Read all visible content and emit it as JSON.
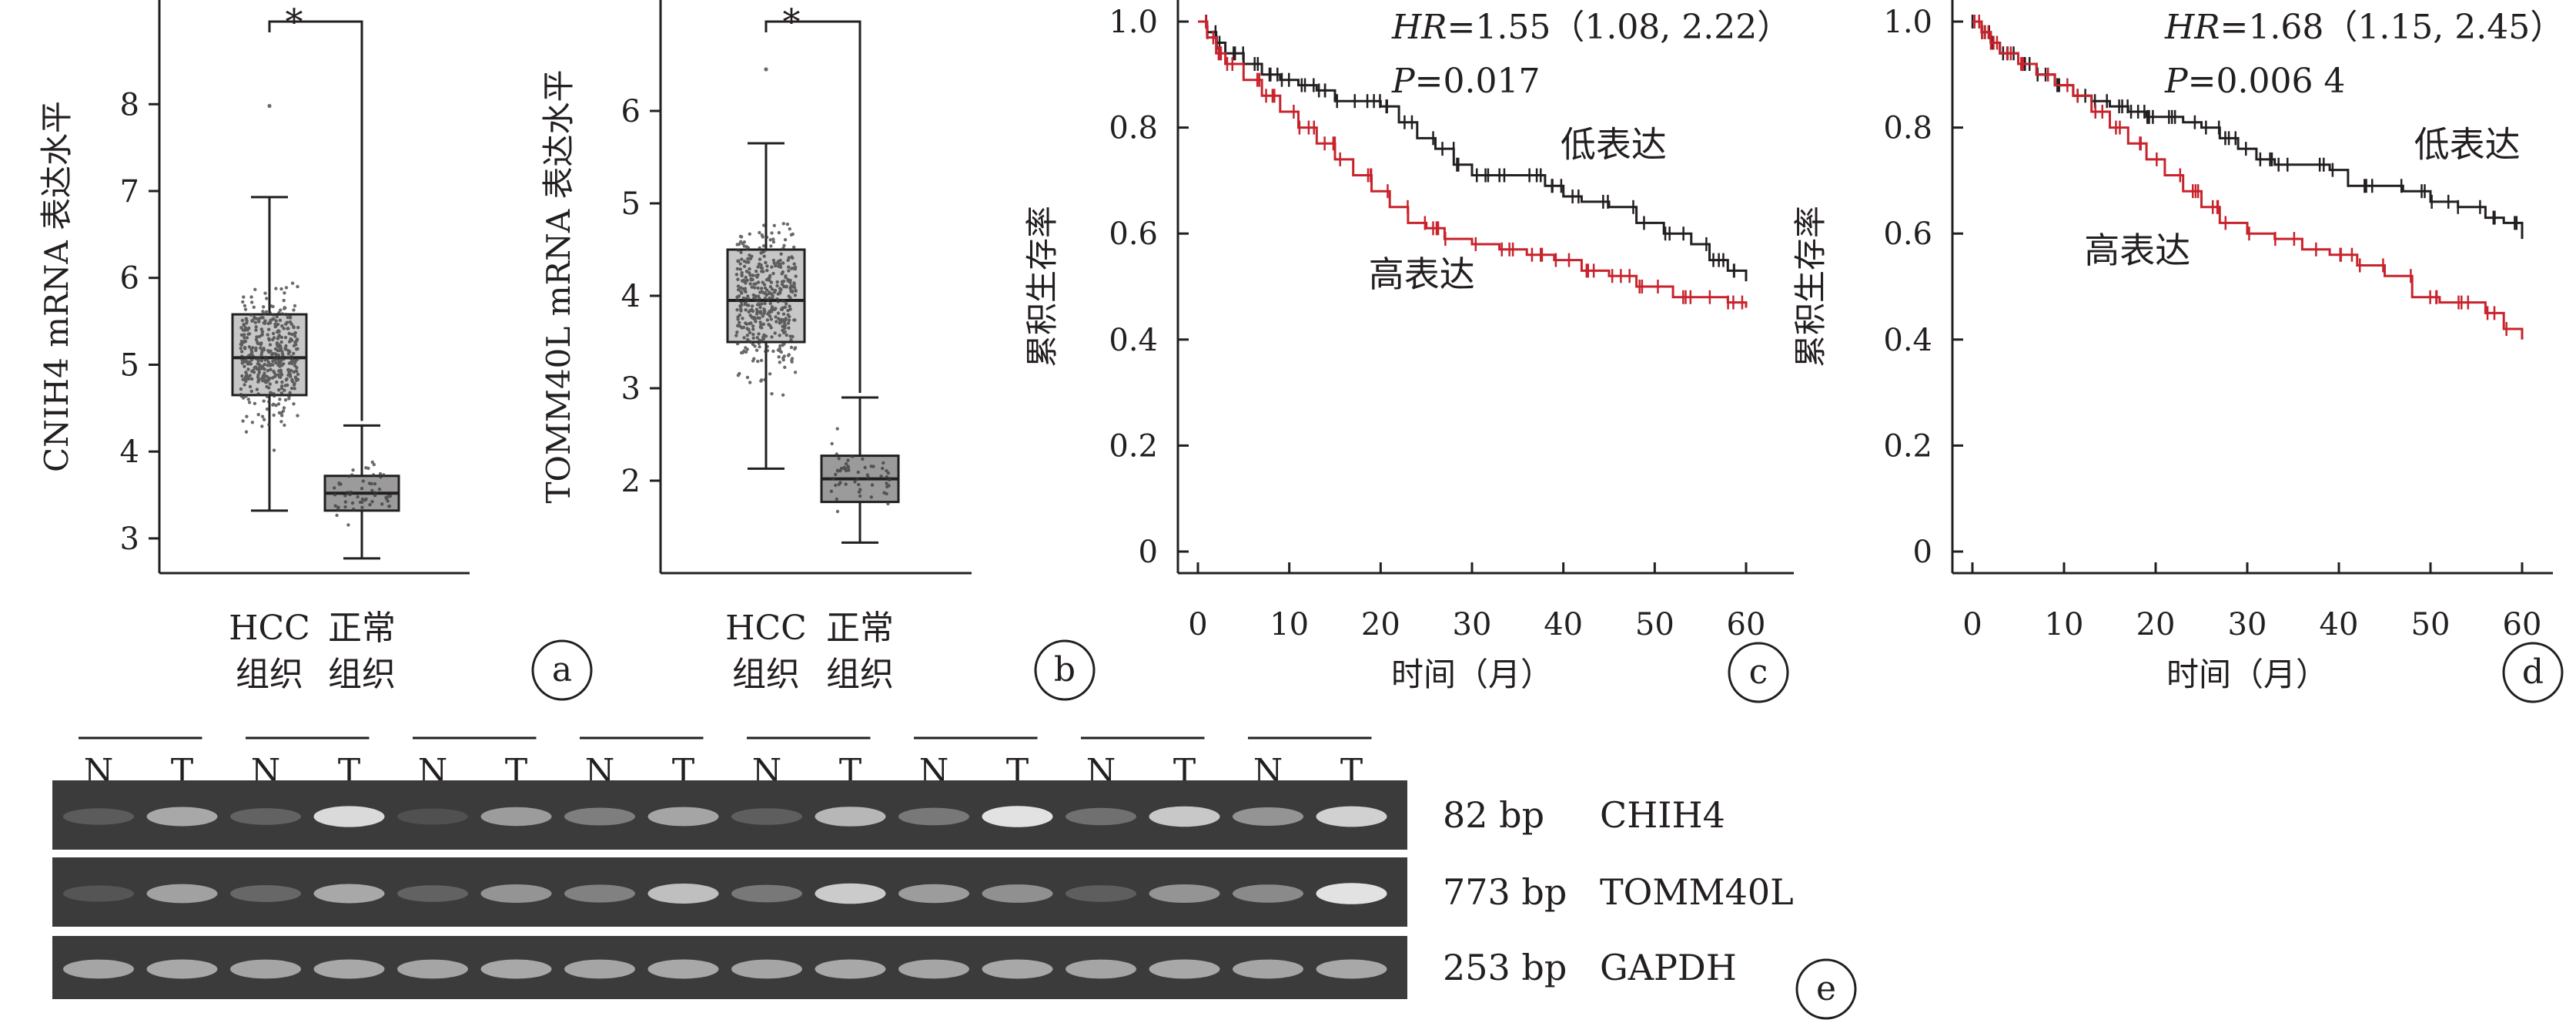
{
  "chart_data": [
    {
      "panel": "a",
      "type": "box",
      "ylabel": "CNIH4 mRNA 表达水平",
      "ylim": [
        2.6,
        9.2
      ],
      "yticks": [
        3,
        4,
        5,
        6,
        7,
        8
      ],
      "categories": [
        [
          "HCC",
          "组织"
        ],
        [
          "正常",
          "组织"
        ]
      ],
      "boxes": [
        {
          "whisker_low": 3.32,
          "q1": 4.65,
          "median": 5.08,
          "q3": 5.58,
          "whisker_high": 6.93,
          "outlier_max": 7.98,
          "color": "#c7c7c7"
        },
        {
          "whisker_low": 2.77,
          "q1": 3.32,
          "median": 3.52,
          "q3": 3.72,
          "whisker_high": 4.3,
          "color": "#9b9b9b"
        }
      ],
      "significance": "*"
    },
    {
      "panel": "b",
      "type": "box",
      "ylabel": "TOMM40L mRNA 表达水平",
      "ylim": [
        1.0,
        7.2
      ],
      "yticks": [
        2,
        3,
        4,
        5,
        6
      ],
      "categories": [
        [
          "HCC",
          "组织"
        ],
        [
          "正常",
          "组织"
        ]
      ],
      "boxes": [
        {
          "whisker_low": 2.13,
          "q1": 3.5,
          "median": 3.95,
          "q3": 4.5,
          "whisker_high": 5.65,
          "outlier_max": 6.45,
          "color": "#c7c7c7"
        },
        {
          "whisker_low": 1.33,
          "q1": 1.77,
          "median": 2.02,
          "q3": 2.27,
          "whisker_high": 2.9,
          "color": "#9b9b9b"
        }
      ],
      "significance": "*"
    },
    {
      "panel": "c",
      "type": "line",
      "xlabel": "时间（月）",
      "ylabel": "累积生存率",
      "xlim": [
        0,
        60
      ],
      "ylim": [
        0,
        1
      ],
      "xticks": [
        0,
        10,
        20,
        30,
        40,
        50,
        60
      ],
      "yticks": [
        0,
        0.2,
        0.4,
        0.6,
        0.8,
        1.0
      ],
      "ytick_labels": [
        "0",
        "0.2",
        "0.4",
        "0.6",
        "0.8",
        "1.0"
      ],
      "stats": {
        "hr": "HR",
        "hr_value": "=1.55（1.08, 2.22）",
        "p": "P",
        "p_value": "=0.017"
      },
      "series": [
        {
          "name": "低表达",
          "color": "#231f20",
          "x": [
            0,
            1,
            2,
            3,
            5,
            7,
            9,
            11,
            13,
            15,
            17,
            19,
            20,
            22,
            24,
            26,
            28,
            30,
            33,
            36,
            38,
            40,
            42,
            45,
            48,
            51,
            54,
            56,
            58,
            60
          ],
          "y": [
            1.0,
            0.98,
            0.96,
            0.94,
            0.92,
            0.9,
            0.89,
            0.88,
            0.87,
            0.85,
            0.85,
            0.85,
            0.84,
            0.81,
            0.78,
            0.76,
            0.73,
            0.71,
            0.71,
            0.71,
            0.69,
            0.67,
            0.66,
            0.65,
            0.62,
            0.6,
            0.58,
            0.55,
            0.53,
            0.51
          ]
        },
        {
          "name": "高表达",
          "color": "#c8232c",
          "x": [
            0,
            1,
            2,
            3,
            5,
            7,
            9,
            11,
            13,
            15,
            17,
            19,
            21,
            23,
            25,
            27,
            30,
            33,
            36,
            39,
            42,
            45,
            48,
            52,
            55,
            58,
            60
          ],
          "y": [
            1.0,
            0.97,
            0.94,
            0.92,
            0.89,
            0.86,
            0.83,
            0.8,
            0.77,
            0.74,
            0.71,
            0.68,
            0.65,
            0.62,
            0.61,
            0.59,
            0.58,
            0.57,
            0.56,
            0.55,
            0.53,
            0.52,
            0.5,
            0.48,
            0.48,
            0.47,
            0.46
          ]
        }
      ],
      "labels": [
        {
          "text": "低表达",
          "x": 45.5,
          "y": 0.745
        },
        {
          "text": "高表达",
          "x": 24.5,
          "y": 0.5
        }
      ]
    },
    {
      "panel": "d",
      "type": "line",
      "xlabel": "时间（月）",
      "ylabel": "累积生存率",
      "xlim": [
        0,
        60
      ],
      "ylim": [
        0,
        1
      ],
      "xticks": [
        0,
        10,
        20,
        30,
        40,
        50,
        60
      ],
      "yticks": [
        0,
        0.2,
        0.4,
        0.6,
        0.8,
        1.0
      ],
      "ytick_labels": [
        "0",
        "0.2",
        "0.4",
        "0.6",
        "0.8",
        "1.0"
      ],
      "stats": {
        "hr": "HR",
        "hr_value": "=1.68（1.15, 2.45）",
        "p": "P",
        "p_value": "=0.006 4"
      },
      "series": [
        {
          "name": "低表达",
          "color": "#231f20",
          "x": [
            0,
            1,
            2,
            3,
            5,
            7,
            9,
            11,
            13,
            15,
            17,
            19,
            21,
            23,
            25,
            27,
            29,
            31,
            33,
            36,
            39,
            41,
            44,
            47,
            50,
            53,
            56,
            58,
            60
          ],
          "y": [
            1.0,
            0.98,
            0.96,
            0.94,
            0.92,
            0.9,
            0.88,
            0.86,
            0.85,
            0.84,
            0.83,
            0.82,
            0.82,
            0.81,
            0.8,
            0.78,
            0.76,
            0.74,
            0.73,
            0.73,
            0.72,
            0.69,
            0.69,
            0.68,
            0.66,
            0.65,
            0.63,
            0.62,
            0.59
          ]
        },
        {
          "name": "高表达",
          "color": "#c8232c",
          "x": [
            0,
            1,
            2,
            3,
            5,
            7,
            9,
            11,
            13,
            15,
            17,
            19,
            21,
            23,
            25,
            27,
            30,
            33,
            36,
            39,
            42,
            45,
            48,
            51,
            54,
            56,
            58,
            60
          ],
          "y": [
            1.0,
            0.98,
            0.96,
            0.94,
            0.92,
            0.9,
            0.88,
            0.86,
            0.83,
            0.8,
            0.77,
            0.74,
            0.71,
            0.68,
            0.65,
            0.62,
            0.6,
            0.59,
            0.57,
            0.56,
            0.54,
            0.52,
            0.48,
            0.47,
            0.47,
            0.45,
            0.42,
            0.4
          ]
        }
      ],
      "labels": [
        {
          "text": "低表达",
          "x": 54,
          "y": 0.745
        },
        {
          "text": "高表达",
          "x": 18,
          "y": 0.545
        }
      ]
    }
  ],
  "gel": {
    "columns": [
      "N",
      "T",
      "N",
      "T",
      "N",
      "T",
      "N",
      "T",
      "N",
      "T",
      "N",
      "T",
      "N",
      "T",
      "N",
      "T"
    ],
    "rows": [
      {
        "bp": "82 bp",
        "gene": "CHIH4",
        "intensity": [
          0.18,
          0.62,
          0.22,
          0.9,
          0.12,
          0.55,
          0.38,
          0.6,
          0.2,
          0.7,
          0.35,
          0.95,
          0.3,
          0.8,
          0.5,
          0.85
        ]
      },
      {
        "bp": "773 bp",
        "gene": "TOMM40L",
        "intensity": [
          0.15,
          0.58,
          0.25,
          0.62,
          0.22,
          0.5,
          0.4,
          0.75,
          0.35,
          0.82,
          0.55,
          0.48,
          0.2,
          0.5,
          0.45,
          0.95
        ]
      },
      {
        "bp": "253 bp",
        "gene": "GAPDH",
        "intensity": [
          0.6,
          0.62,
          0.6,
          0.62,
          0.6,
          0.62,
          0.6,
          0.62,
          0.6,
          0.62,
          0.6,
          0.62,
          0.6,
          0.62,
          0.6,
          0.62
        ]
      }
    ]
  },
  "panel_labels": [
    "a",
    "b",
    "c",
    "d",
    "e"
  ]
}
